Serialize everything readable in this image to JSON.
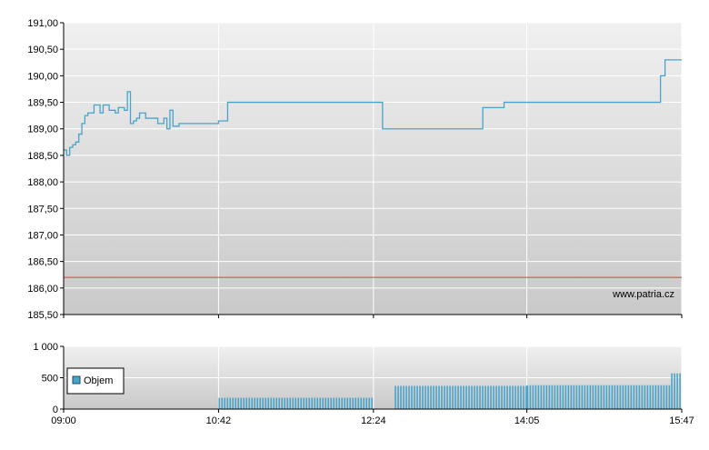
{
  "chart_data": [
    {
      "type": "line",
      "title": "",
      "xlabel": "",
      "ylabel": "",
      "ylim": [
        185.5,
        191.0
      ],
      "y_ticks": [
        185.5,
        186.0,
        186.5,
        187.0,
        187.5,
        188.0,
        188.5,
        189.0,
        189.5,
        190.0,
        190.5,
        191.0
      ],
      "y_tick_labels": [
        "185,50",
        "186,00",
        "186,50",
        "187,00",
        "187,50",
        "188,00",
        "188,50",
        "189,00",
        "189,50",
        "190,00",
        "190,50",
        "191,00"
      ],
      "grid": true,
      "line_color": "#4aa3c8",
      "reference_color": "#cc4a3a",
      "reference_value": 186.2,
      "watermark": "www.patria.cz",
      "series": [
        {
          "name": "",
          "x": [
            "09:00",
            "09:02",
            "09:04",
            "09:06",
            "09:08",
            "09:10",
            "09:12",
            "09:14",
            "09:16",
            "09:18",
            "09:20",
            "09:22",
            "09:24",
            "09:26",
            "09:28",
            "09:30",
            "09:32",
            "09:34",
            "09:36",
            "09:38",
            "09:40",
            "09:42",
            "09:44",
            "09:46",
            "09:48",
            "09:50",
            "09:52",
            "09:54",
            "09:56",
            "09:58",
            "10:00",
            "10:02",
            "10:04",
            "10:06",
            "10:08",
            "10:10",
            "10:12",
            "10:14",
            "10:16",
            "10:18",
            "10:20",
            "10:22",
            "10:24",
            "10:26",
            "10:28",
            "10:30",
            "10:32",
            "10:34",
            "10:36",
            "10:38",
            "10:40",
            "10:42",
            "10:48",
            "12:24",
            "12:30",
            "13:30",
            "13:36",
            "13:50",
            "14:05",
            "15:30",
            "15:33",
            "15:36",
            "15:47"
          ],
          "values": [
            188.6,
            188.5,
            188.65,
            188.7,
            188.75,
            188.9,
            189.1,
            189.25,
            189.3,
            189.3,
            189.45,
            189.45,
            189.3,
            189.45,
            189.45,
            189.35,
            189.35,
            189.3,
            189.4,
            189.4,
            189.35,
            189.7,
            189.1,
            189.15,
            189.2,
            189.3,
            189.3,
            189.2,
            189.2,
            189.2,
            189.2,
            189.1,
            189.1,
            189.2,
            189.0,
            189.35,
            189.05,
            189.05,
            189.1,
            189.1,
            189.1,
            189.1,
            189.1,
            189.1,
            189.1,
            189.1,
            189.1,
            189.1,
            189.1,
            189.1,
            189.1,
            189.15,
            189.5,
            189.5,
            189.0,
            189.0,
            189.4,
            189.5,
            189.5,
            189.5,
            190.0,
            190.3,
            190.3
          ]
        }
      ]
    },
    {
      "type": "bar",
      "title": "",
      "xlabel": "",
      "ylabel": "",
      "ylim": [
        0,
        1000
      ],
      "y_ticks": [
        0,
        500,
        1000
      ],
      "y_tick_labels": [
        "0",
        "500",
        "1 000"
      ],
      "grid": true,
      "bar_color": "#4aa3c8",
      "legend": {
        "placement": "left",
        "entries": [
          "Objem"
        ]
      },
      "series": [
        {
          "name": "Objem",
          "segments": [
            {
              "from": "10:42",
              "to": "12:24",
              "value": 180
            },
            {
              "from": "12:38",
              "to": "14:05",
              "value": 370
            },
            {
              "from": "14:05",
              "to": "15:40",
              "value": 380
            },
            {
              "from": "15:40",
              "to": "15:47",
              "value": 570
            }
          ]
        }
      ]
    }
  ],
  "x_axis": {
    "range": [
      "09:00",
      "15:47"
    ],
    "tick_labels": [
      "09:00",
      "10:42",
      "12:24",
      "14:05",
      "15:47"
    ]
  }
}
